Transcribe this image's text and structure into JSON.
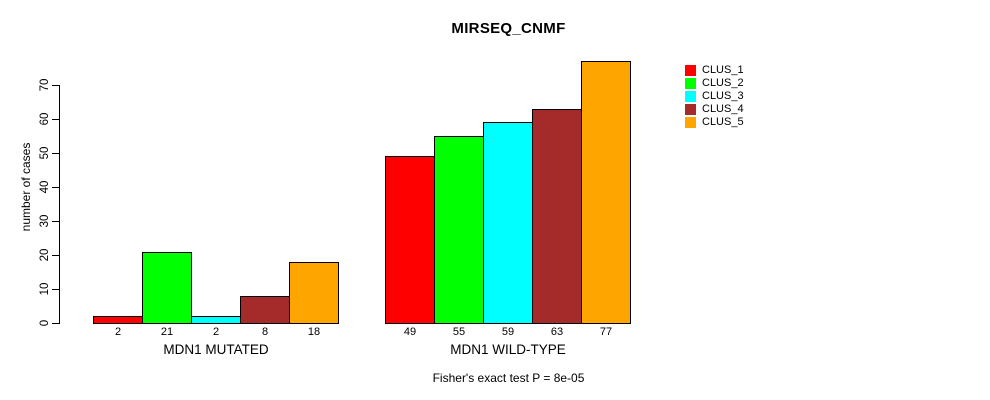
{
  "chart_data": {
    "type": "bar",
    "title": "MIRSEQ_CNMF",
    "xlabel": "",
    "ylabel": "number of cases",
    "ylim": [
      0,
      77
    ],
    "yticks": [
      0,
      10,
      20,
      30,
      40,
      50,
      60,
      70
    ],
    "categories": [
      "MDN1 MUTATED",
      "MDN1 WILD-TYPE"
    ],
    "series": [
      {
        "name": "CLUS_1",
        "color": "#FF0000",
        "values": [
          2,
          49
        ]
      },
      {
        "name": "CLUS_2",
        "color": "#00FF00",
        "values": [
          21,
          55
        ]
      },
      {
        "name": "CLUS_3",
        "color": "#00FFFF",
        "values": [
          2,
          59
        ]
      },
      {
        "name": "CLUS_4",
        "color": "#A52A2A",
        "values": [
          8,
          63
        ]
      },
      {
        "name": "CLUS_5",
        "color": "#FFA500",
        "values": [
          18,
          77
        ]
      }
    ],
    "bar_value_labels": [
      [
        "2",
        "21",
        "2",
        "8",
        "18"
      ],
      [
        "49",
        "55",
        "59",
        "63",
        "77"
      ]
    ],
    "annotation": "Fisher's exact test P = 8e-05",
    "legend_position": "right",
    "grid": false,
    "background_color": "#FFFFFF",
    "axis_color": "#000000",
    "bar_border_color": "#000000"
  }
}
